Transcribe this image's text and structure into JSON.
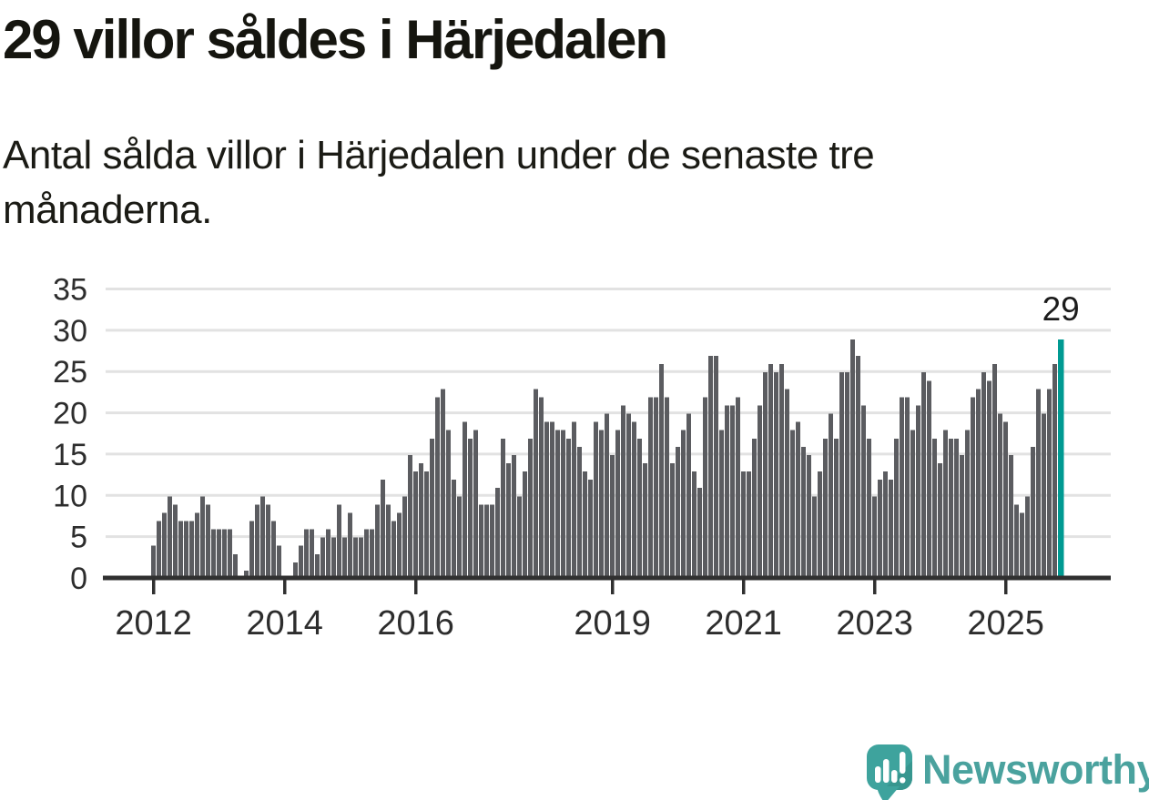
{
  "header": {
    "title": "29 villor såldes i Härjedalen",
    "subtitle": "Antal sålda villor i Härjedalen under de senaste tre månaderna."
  },
  "chart_data": {
    "type": "bar",
    "title": "29 villor såldes i Härjedalen",
    "subtitle": "Antal sålda villor i Härjedalen under de senaste tre månaderna.",
    "x_start_year": 2012,
    "frequency": "monthly",
    "values": [
      4,
      7,
      8,
      10,
      9,
      7,
      7,
      7,
      8,
      10,
      9,
      6,
      6,
      6,
      6,
      3,
      0,
      1,
      7,
      9,
      10,
      9,
      7,
      4,
      0,
      0,
      2,
      4,
      6,
      6,
      3,
      5,
      6,
      5,
      9,
      5,
      8,
      5,
      5,
      6,
      6,
      9,
      12,
      9,
      7,
      8,
      10,
      15,
      13,
      14,
      13,
      17,
      22,
      23,
      18,
      12,
      10,
      19,
      17,
      18,
      9,
      9,
      9,
      11,
      17,
      14,
      15,
      10,
      13,
      17,
      23,
      22,
      19,
      19,
      18,
      18,
      17,
      19,
      16,
      13,
      12,
      19,
      18,
      20,
      15,
      18,
      21,
      20,
      19,
      17,
      14,
      22,
      22,
      26,
      22,
      14,
      16,
      18,
      20,
      13,
      11,
      22,
      27,
      27,
      18,
      21,
      21,
      22,
      13,
      13,
      17,
      21,
      25,
      26,
      25,
      26,
      23,
      18,
      19,
      16,
      15,
      10,
      13,
      17,
      20,
      17,
      25,
      25,
      29,
      27,
      21,
      17,
      10,
      12,
      13,
      12,
      17,
      22,
      22,
      18,
      21,
      25,
      24,
      17,
      14,
      18,
      17,
      17,
      15,
      18,
      22,
      23,
      25,
      24,
      26,
      20,
      19,
      15,
      9,
      8,
      10,
      16,
      23,
      20,
      23,
      26,
      29
    ],
    "highlight_last_index": 166,
    "annotation": {
      "label": "29"
    },
    "ylim": [
      0,
      35
    ],
    "y_ticks": [
      0,
      5,
      10,
      15,
      20,
      25,
      30,
      35
    ],
    "x_ticks": [
      {
        "label": "2012",
        "month_index": 0
      },
      {
        "label": "2014",
        "month_index": 24
      },
      {
        "label": "2016",
        "month_index": 48
      },
      {
        "label": "2019",
        "month_index": 84
      },
      {
        "label": "2021",
        "month_index": 108
      },
      {
        "label": "2023",
        "month_index": 132
      },
      {
        "label": "2025",
        "month_index": 156
      }
    ],
    "grid": true,
    "legend": "none"
  },
  "footer": {
    "brand": "Newsworthy"
  },
  "colors": {
    "bar": "#5b5c60",
    "highlight": "#009a92",
    "grid": "#e2e2e2",
    "axis": "#303030",
    "tick_label": "#2d2d2d",
    "title_text": "#15150f",
    "annotation_text": "#1b1b1b",
    "brand_teal": "#3ea39d",
    "brand_teal_dark": "#37968f",
    "brand_text": "#4aa29e",
    "background": "#ffffff"
  },
  "icons": {
    "logo": "bar-chart-exclamation-speech-bubble-icon"
  }
}
